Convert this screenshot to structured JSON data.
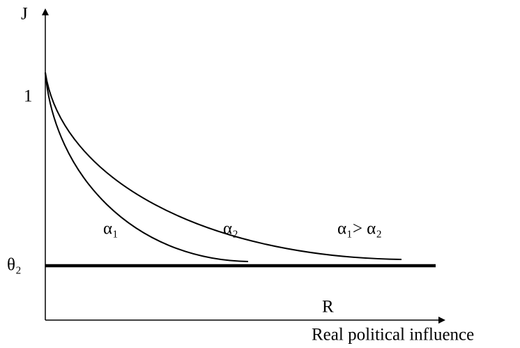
{
  "axes": {
    "y_label": "J",
    "x_label": "R",
    "x_title": "Real political influence",
    "y_mark_one": "1",
    "y_mark_theta": "θ₂"
  },
  "curves": [
    {
      "label": "α₁"
    },
    {
      "label": "α₂"
    }
  ],
  "annotation": "α₁> α₂"
}
